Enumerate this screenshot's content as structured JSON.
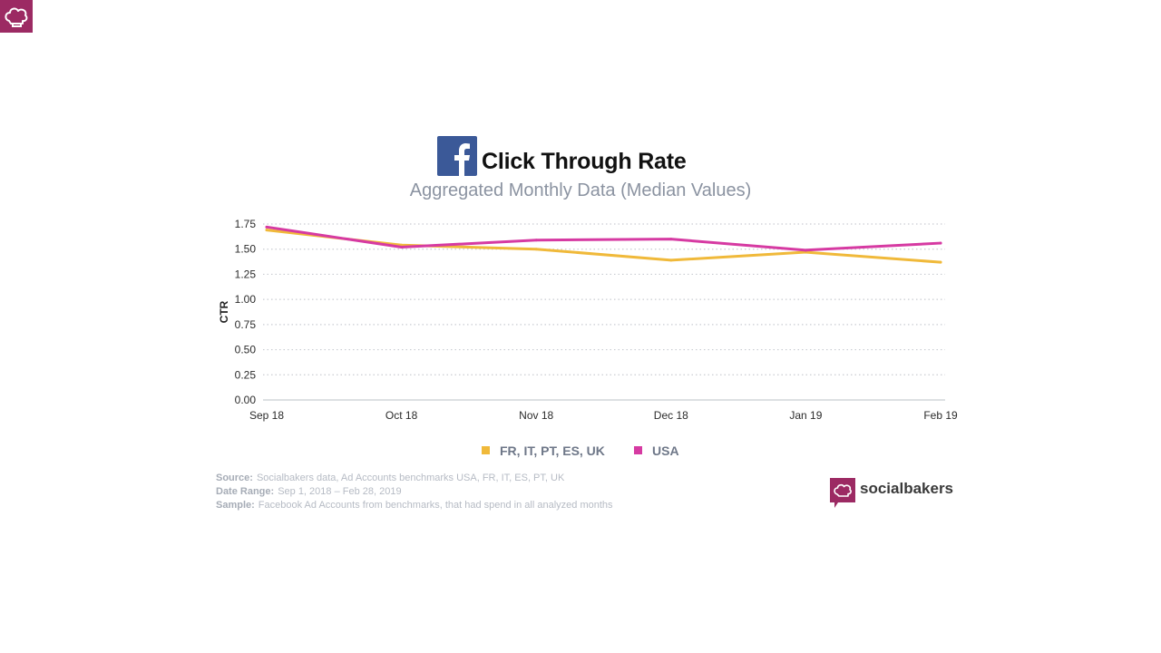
{
  "header": {
    "title": "Click Through Rate",
    "subtitle": "Aggregated Monthly Data (Median Values)"
  },
  "icons": {
    "corner": "socialbakers-chef-hat-icon",
    "title": "facebook-icon"
  },
  "colors": {
    "brand": "#9c2a63",
    "facebook": "#3b5998",
    "series_eu": "#f0b93a",
    "series_usa": "#d63aa2"
  },
  "chart_data": {
    "type": "line",
    "title": "Click Through Rate",
    "subtitle": "Aggregated Monthly Data (Median Values)",
    "xlabel": "",
    "ylabel": "CTR",
    "categories": [
      "Sep 18",
      "Oct 18",
      "Nov 18",
      "Dec 18",
      "Jan 19",
      "Feb 19"
    ],
    "ylim": [
      0,
      1.75
    ],
    "yticks": [
      "0.00",
      "0.25",
      "0.50",
      "0.75",
      "1.00",
      "1.25",
      "1.50",
      "1.75"
    ],
    "grid": true,
    "legend_position": "bottom",
    "series": [
      {
        "name": "FR, IT, PT, ES, UK",
        "color": "#f0b93a",
        "values": [
          1.69,
          1.54,
          1.5,
          1.39,
          1.47,
          1.37
        ]
      },
      {
        "name": "USA",
        "color": "#d63aa2",
        "values": [
          1.72,
          1.52,
          1.59,
          1.6,
          1.49,
          1.56
        ]
      }
    ]
  },
  "source": {
    "source_label": "Source:",
    "source_text": "Socialbakers data, Ad Accounts benchmarks USA, FR, IT, ES, PT, UK",
    "date_label": "Date Range:",
    "date_text": "Sep 1, 2018  – Feb 28, 2019",
    "sample_label": "Sample:",
    "sample_text": "Facebook Ad Accounts from benchmarks, that had spend in all analyzed months"
  },
  "brand": {
    "name": "socialbakers"
  }
}
